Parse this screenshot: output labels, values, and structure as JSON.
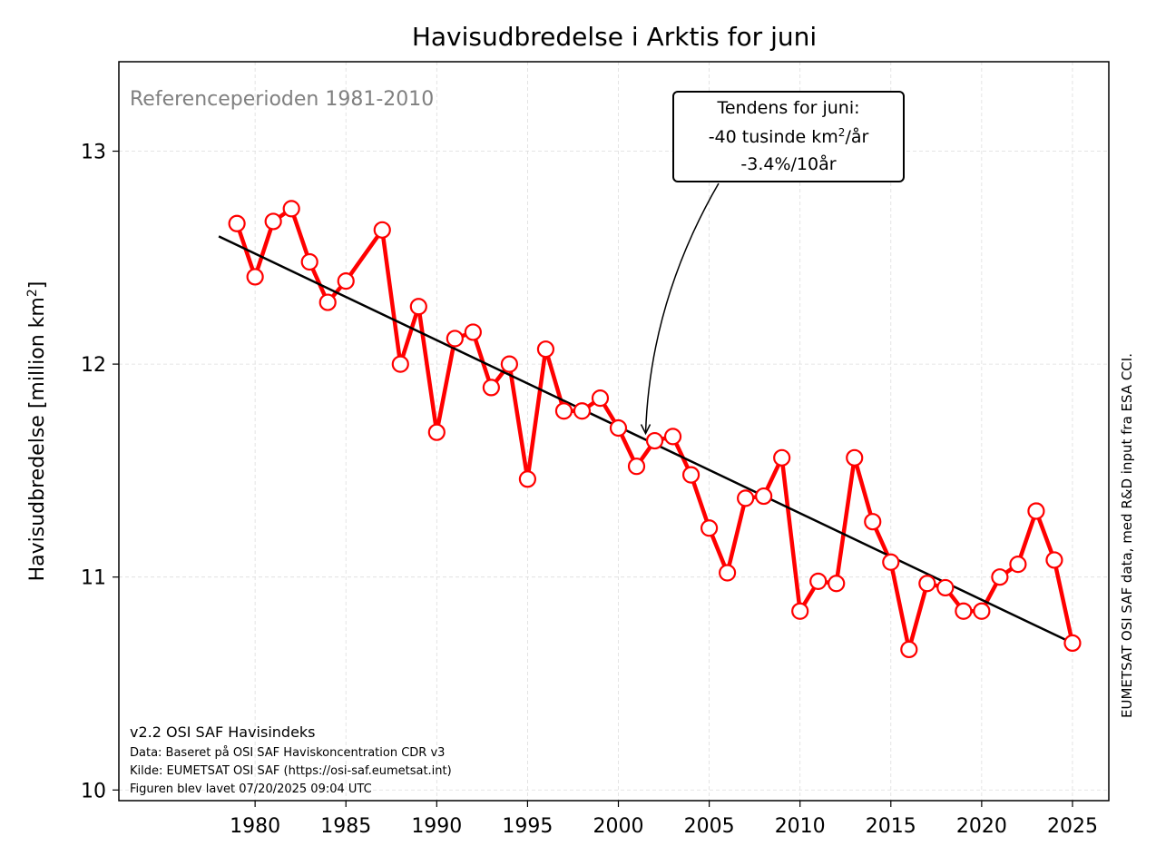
{
  "chart_data": {
    "type": "line",
    "title": "Havisudbredelse i Arktis for juni",
    "ylabel": "Havisudbredelse [million km",
    "ylabel_sup": "2",
    "ylabel_end": "]",
    "xlim": [
      1972.5,
      2027.0
    ],
    "ylim": [
      9.95,
      13.42
    ],
    "xticks": [
      1980,
      1985,
      1990,
      1995,
      2000,
      2005,
      2010,
      2015,
      2020,
      2025
    ],
    "xtick_labels": [
      "1980",
      "1985",
      "1990",
      "1995",
      "2000",
      "2005",
      "2010",
      "2015",
      "2020",
      "2025"
    ],
    "yticks": [
      10,
      11,
      12,
      13
    ],
    "ytick_labels": [
      "10",
      "11",
      "12",
      "13"
    ],
    "grid": true,
    "reference_text": "Referenceperioden 1981-2010",
    "series": [
      {
        "color": "#ff0000",
        "x": [
          1979,
          1980,
          1981,
          1982,
          1983,
          1984,
          1985,
          1987,
          1988,
          1989,
          1990,
          1991,
          1992,
          1993,
          1994,
          1995,
          1996,
          1997,
          1998,
          1999,
          2000,
          2001,
          2002,
          2003,
          2004,
          2005,
          2006,
          2007,
          2008,
          2009,
          2010,
          2011,
          2012,
          2013,
          2014,
          2015,
          2016,
          2017,
          2018,
          2019,
          2020,
          2021,
          2022,
          2023,
          2024,
          2025
        ],
        "values": [
          12.66,
          12.41,
          12.67,
          12.73,
          12.48,
          12.29,
          12.39,
          12.63,
          12.0,
          12.27,
          11.68,
          12.12,
          12.15,
          11.89,
          12.0,
          11.46,
          12.07,
          11.78,
          11.78,
          11.84,
          11.7,
          11.52,
          11.64,
          11.66,
          11.48,
          11.23,
          11.02,
          11.37,
          11.38,
          11.56,
          10.84,
          10.98,
          10.97,
          11.56,
          11.26,
          11.07,
          10.66,
          10.97,
          10.95,
          10.84,
          10.84,
          11.0,
          11.06,
          11.31,
          11.08,
          10.69
        ]
      },
      {
        "color": "#000000",
        "x": [
          1978,
          2025
        ],
        "values": [
          12.6,
          10.69
        ]
      }
    ],
    "annotation": {
      "line1": "Tendens for juni:",
      "line2": "-40 tusinde km",
      "line2_sup": "2",
      "line2_end": "/år",
      "line3": "-3.4%/10år",
      "arrow_target": [
        2001.5,
        11.67
      ]
    },
    "footer": [
      "v2.2 OSI SAF Havisindeks",
      "Data: Baseret på OSI SAF Haviskoncentration CDR v3",
      "Kilde: EUMETSAT OSI SAF (https://osi-saf.eumetsat.int)",
      "Figuren blev lavet 07/20/2025 09:04 UTC"
    ],
    "side_credit": "EUMETSAT OSI SAF data, med R&D input fra ESA CCI."
  }
}
